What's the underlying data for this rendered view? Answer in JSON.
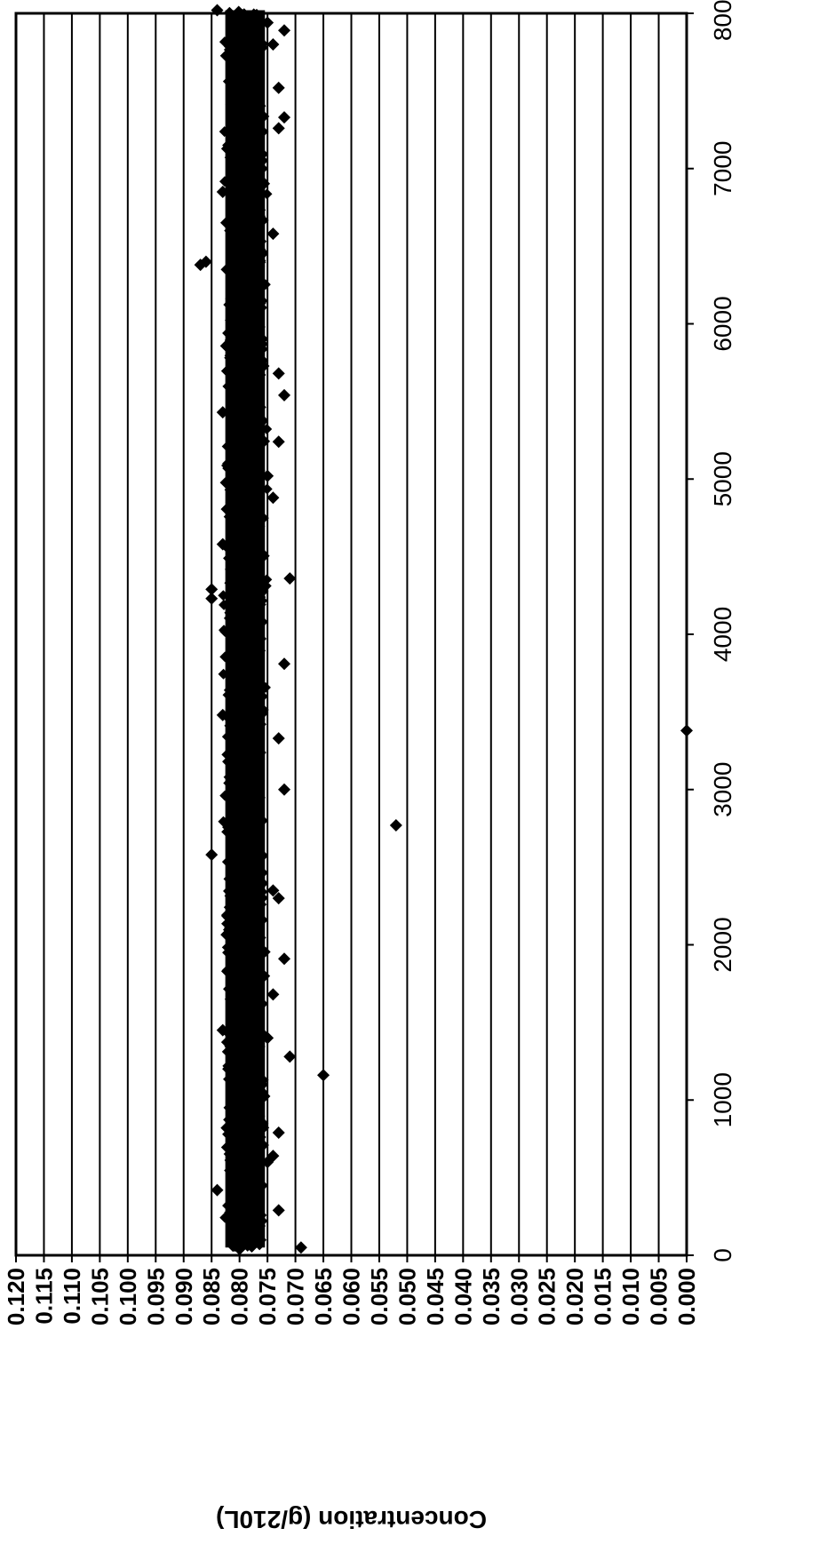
{
  "chart_data": {
    "type": "scatter",
    "title": "",
    "xlabel": "",
    "ylabel": "Concentration (g/210L)",
    "xlim": [
      0,
      8000
    ],
    "ylim": [
      0.0,
      0.12
    ],
    "x_ticks": [
      "0",
      "1000",
      "2000",
      "3000",
      "4000",
      "5000",
      "6000",
      "7000",
      "8000"
    ],
    "y_ticks": [
      "0.120",
      "0.115",
      "0.110",
      "0.105",
      "0.100",
      "0.095",
      "0.090",
      "0.085",
      "0.080",
      "0.075",
      "0.070",
      "0.065",
      "0.060",
      "0.055",
      "0.050",
      "0.045",
      "0.040",
      "0.035",
      "0.030",
      "0.025",
      "0.020",
      "0.015",
      "0.010",
      "0.005",
      "0.000"
    ],
    "grid": true,
    "legend": "none",
    "orientation": "rotated 90 degrees clockwise",
    "marker": "diamond",
    "marker_color": "#000000",
    "series": [
      {
        "points": [
          [
            40,
            0.08
          ],
          [
            50,
            0.069
          ],
          [
            80,
            0.079
          ],
          [
            120,
            0.081
          ],
          [
            150,
            0.077
          ],
          [
            200,
            0.08
          ],
          [
            260,
            0.078
          ],
          [
            290,
            0.073
          ],
          [
            320,
            0.082
          ],
          [
            380,
            0.079
          ],
          [
            420,
            0.084
          ],
          [
            450,
            0.076
          ],
          [
            500,
            0.08
          ],
          [
            560,
            0.081
          ],
          [
            600,
            0.075
          ],
          [
            640,
            0.074
          ],
          [
            700,
            0.079
          ],
          [
            780,
            0.082
          ],
          [
            790,
            0.073
          ],
          [
            850,
            0.077
          ],
          [
            900,
            0.08
          ],
          [
            950,
            0.081
          ],
          [
            1000,
            0.078
          ],
          [
            1050,
            0.076
          ],
          [
            1120,
            0.08
          ],
          [
            1160,
            0.065
          ],
          [
            1200,
            0.082
          ],
          [
            1260,
            0.077
          ],
          [
            1280,
            0.071
          ],
          [
            1330,
            0.079
          ],
          [
            1400,
            0.075
          ],
          [
            1450,
            0.083
          ],
          [
            1500,
            0.078
          ],
          [
            1560,
            0.08
          ],
          [
            1620,
            0.076
          ],
          [
            1680,
            0.074
          ],
          [
            1700,
            0.081
          ],
          [
            1780,
            0.079
          ],
          [
            1850,
            0.077
          ],
          [
            1910,
            0.072
          ],
          [
            1950,
            0.082
          ],
          [
            2020,
            0.078
          ],
          [
            2100,
            0.08
          ],
          [
            2160,
            0.076
          ],
          [
            2220,
            0.079
          ],
          [
            2300,
            0.073
          ],
          [
            2350,
            0.074
          ],
          [
            2400,
            0.081
          ],
          [
            2450,
            0.077
          ],
          [
            2500,
            0.08
          ],
          [
            2580,
            0.085
          ],
          [
            2650,
            0.078
          ],
          [
            2700,
            0.079
          ],
          [
            2770,
            0.052
          ],
          [
            2800,
            0.076
          ],
          [
            2860,
            0.081
          ],
          [
            2920,
            0.078
          ],
          [
            3000,
            0.072
          ],
          [
            3050,
            0.08
          ],
          [
            3110,
            0.077
          ],
          [
            3180,
            0.082
          ],
          [
            3250,
            0.079
          ],
          [
            3330,
            0.073
          ],
          [
            3380,
            0.0
          ],
          [
            3420,
            0.081
          ],
          [
            3480,
            0.083
          ],
          [
            3540,
            0.078
          ],
          [
            3600,
            0.076
          ],
          [
            3680,
            0.08
          ],
          [
            3750,
            0.079
          ],
          [
            3810,
            0.072
          ],
          [
            3860,
            0.082
          ],
          [
            3930,
            0.077
          ],
          [
            4000,
            0.08
          ],
          [
            4080,
            0.076
          ],
          [
            4150,
            0.081
          ],
          [
            4230,
            0.085
          ],
          [
            4290,
            0.085
          ],
          [
            4360,
            0.071
          ],
          [
            4400,
            0.078
          ],
          [
            4470,
            0.08
          ],
          [
            4520,
            0.076
          ],
          [
            4580,
            0.083
          ],
          [
            4650,
            0.079
          ],
          [
            4720,
            0.077
          ],
          [
            4800,
            0.081
          ],
          [
            4880,
            0.074
          ],
          [
            4950,
            0.079
          ],
          [
            5020,
            0.075
          ],
          [
            5100,
            0.082
          ],
          [
            5170,
            0.078
          ],
          [
            5240,
            0.073
          ],
          [
            5300,
            0.08
          ],
          [
            5380,
            0.076
          ],
          [
            5430,
            0.083
          ],
          [
            5500,
            0.079
          ],
          [
            5540,
            0.072
          ],
          [
            5600,
            0.081
          ],
          [
            5680,
            0.073
          ],
          [
            5720,
            0.078
          ],
          [
            5800,
            0.08
          ],
          [
            5870,
            0.076
          ],
          [
            5940,
            0.082
          ],
          [
            6000,
            0.079
          ],
          [
            6080,
            0.077
          ],
          [
            6150,
            0.081
          ],
          [
            6220,
            0.078
          ],
          [
            6300,
            0.08
          ],
          [
            6380,
            0.087
          ],
          [
            6400,
            0.086
          ],
          [
            6450,
            0.076
          ],
          [
            6530,
            0.079
          ],
          [
            6580,
            0.074
          ],
          [
            6650,
            0.081
          ],
          [
            6720,
            0.077
          ],
          [
            6780,
            0.08
          ],
          [
            6850,
            0.083
          ],
          [
            6920,
            0.078
          ],
          [
            7000,
            0.076
          ],
          [
            7080,
            0.08
          ],
          [
            7150,
            0.082
          ],
          [
            7220,
            0.079
          ],
          [
            7260,
            0.073
          ],
          [
            7330,
            0.072
          ],
          [
            7400,
            0.078
          ],
          [
            7470,
            0.081
          ],
          [
            7520,
            0.073
          ],
          [
            7580,
            0.077
          ],
          [
            7650,
            0.08
          ],
          [
            7720,
            0.082
          ],
          [
            7780,
            0.076
          ],
          [
            7800,
            0.074
          ],
          [
            7860,
            0.079
          ],
          [
            7890,
            0.072
          ],
          [
            7940,
            0.075
          ],
          [
            8000,
            0.08
          ],
          [
            8020,
            0.084
          ]
        ],
        "band": {
          "x_range": [
            50,
            8020
          ],
          "y_min": 0.0745,
          "y_max": 0.0835,
          "description": "dense cluster of thousands of points"
        }
      }
    ]
  }
}
